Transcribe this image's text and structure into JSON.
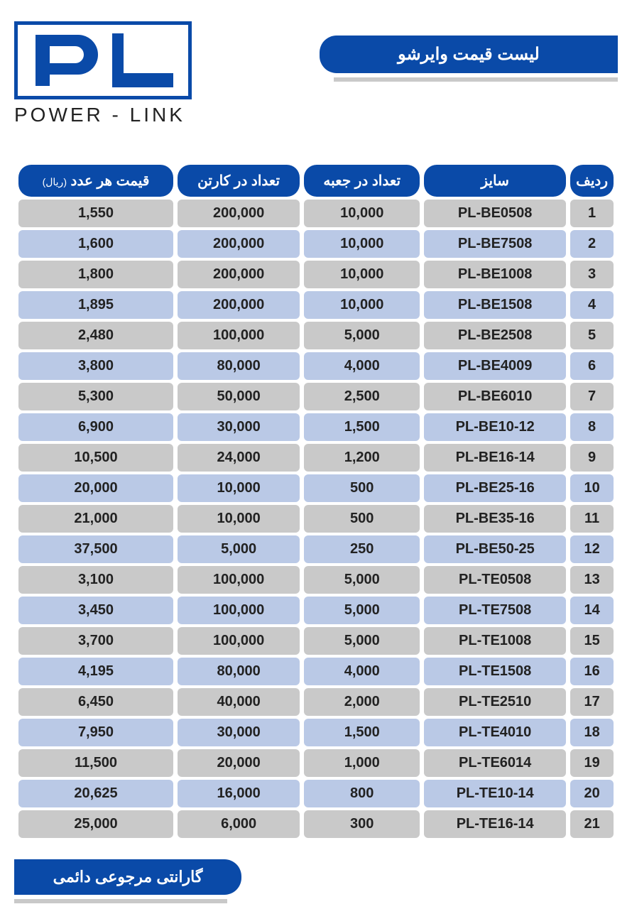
{
  "brand": {
    "logo_letters": "PL",
    "name": "POWER - LINK"
  },
  "title": "لیست قیمت وایرشو",
  "footer": "گارانتی مرجوعی دائمی",
  "colors": {
    "accent": "#0a4aa8",
    "row_odd": "#c9c9c9",
    "row_even": "#bac9e6",
    "underline": "#c9c9c9",
    "text": "#222222",
    "bg": "#ffffff"
  },
  "table": {
    "columns": [
      {
        "label": "ردیف",
        "key": "idx"
      },
      {
        "label": "سایز",
        "key": "size"
      },
      {
        "label": "تعداد در جعبه",
        "key": "box"
      },
      {
        "label": "تعداد در کارتن",
        "key": "carton"
      },
      {
        "label": "قیمت هر عدد",
        "key": "price",
        "suffix": "(ریال)"
      }
    ],
    "rows": [
      {
        "idx": "1",
        "size": "PL-BE0508",
        "box": "10,000",
        "carton": "200,000",
        "price": "1,550"
      },
      {
        "idx": "2",
        "size": "PL-BE7508",
        "box": "10,000",
        "carton": "200,000",
        "price": "1,600"
      },
      {
        "idx": "3",
        "size": "PL-BE1008",
        "box": "10,000",
        "carton": "200,000",
        "price": "1,800"
      },
      {
        "idx": "4",
        "size": "PL-BE1508",
        "box": "10,000",
        "carton": "200,000",
        "price": "1,895"
      },
      {
        "idx": "5",
        "size": "PL-BE2508",
        "box": "5,000",
        "carton": "100,000",
        "price": "2,480"
      },
      {
        "idx": "6",
        "size": "PL-BE4009",
        "box": "4,000",
        "carton": "80,000",
        "price": "3,800"
      },
      {
        "idx": "7",
        "size": "PL-BE6010",
        "box": "2,500",
        "carton": "50,000",
        "price": "5,300"
      },
      {
        "idx": "8",
        "size": "PL-BE10-12",
        "box": "1,500",
        "carton": "30,000",
        "price": "6,900"
      },
      {
        "idx": "9",
        "size": "PL-BE16-14",
        "box": "1,200",
        "carton": "24,000",
        "price": "10,500"
      },
      {
        "idx": "10",
        "size": "PL-BE25-16",
        "box": "500",
        "carton": "10,000",
        "price": "20,000"
      },
      {
        "idx": "11",
        "size": "PL-BE35-16",
        "box": "500",
        "carton": "10,000",
        "price": "21,000"
      },
      {
        "idx": "12",
        "size": "PL-BE50-25",
        "box": "250",
        "carton": "5,000",
        "price": "37,500"
      },
      {
        "idx": "13",
        "size": "PL-TE0508",
        "box": "5,000",
        "carton": "100,000",
        "price": "3,100"
      },
      {
        "idx": "14",
        "size": "PL-TE7508",
        "box": "5,000",
        "carton": "100,000",
        "price": "3,450"
      },
      {
        "idx": "15",
        "size": "PL-TE1008",
        "box": "5,000",
        "carton": "100,000",
        "price": "3,700"
      },
      {
        "idx": "16",
        "size": "PL-TE1508",
        "box": "4,000",
        "carton": "80,000",
        "price": "4,195"
      },
      {
        "idx": "17",
        "size": "PL-TE2510",
        "box": "2,000",
        "carton": "40,000",
        "price": "6,450"
      },
      {
        "idx": "18",
        "size": "PL-TE4010",
        "box": "1,500",
        "carton": "30,000",
        "price": "7,950"
      },
      {
        "idx": "19",
        "size": "PL-TE6014",
        "box": "1,000",
        "carton": "20,000",
        "price": "11,500"
      },
      {
        "idx": "20",
        "size": "PL-TE10-14",
        "box": "800",
        "carton": "16,000",
        "price": "20,625"
      },
      {
        "idx": "21",
        "size": "PL-TE16-14",
        "box": "300",
        "carton": "6,000",
        "price": "25,000"
      }
    ]
  }
}
